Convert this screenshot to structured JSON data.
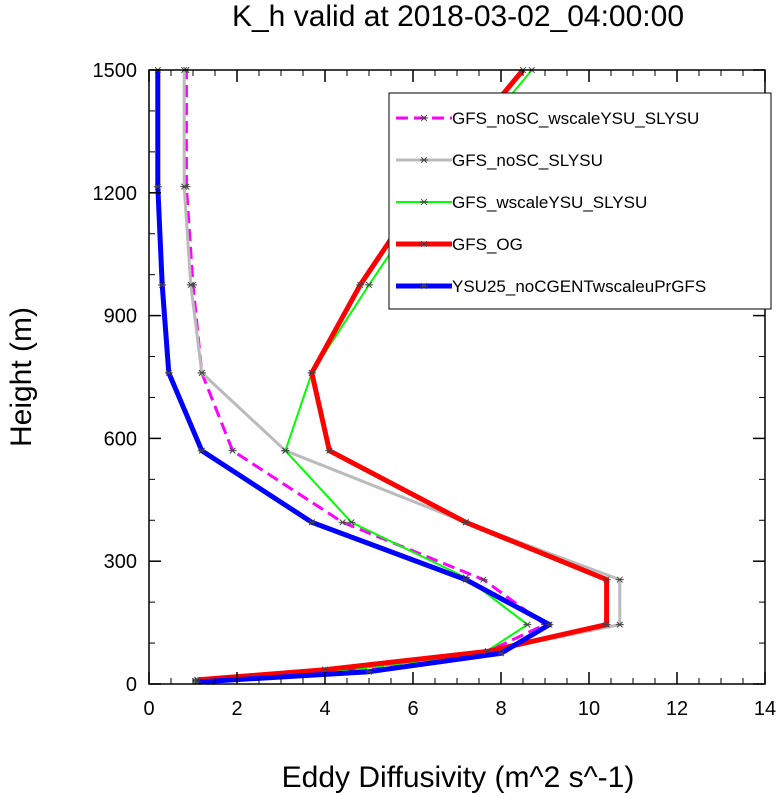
{
  "chart_data": {
    "type": "line",
    "title": "K_h valid at 2018-03-02_04:00:00",
    "xlabel": "Eddy Diffusivity (m^2 s^-1)",
    "ylabel": "Height (m)",
    "xlim": [
      0,
      14
    ],
    "ylim": [
      0,
      1500
    ],
    "xticks": [
      "0",
      "2",
      "4",
      "6",
      "8",
      "10",
      "12",
      "14"
    ],
    "yticks": [
      "0",
      "300",
      "600",
      "900",
      "1200",
      "1500"
    ],
    "grid": false,
    "legend_position": "top-right",
    "series": [
      {
        "name": "GFS_noSC_wscaleYSU_SLYSU",
        "color": "#ff00ff",
        "style": "dashed",
        "width": 3,
        "marker": "asterisk",
        "points": [
          [
            1.4,
            5
          ],
          [
            4.7,
            30
          ],
          [
            7.7,
            80
          ],
          [
            9.0,
            145
          ],
          [
            7.6,
            255
          ],
          [
            4.4,
            395
          ],
          [
            1.9,
            570
          ],
          [
            1.2,
            760
          ],
          [
            1.0,
            975
          ],
          [
            0.85,
            1215
          ],
          [
            0.85,
            1500
          ]
        ]
      },
      {
        "name": "GFS_noSC_SLYSU",
        "color": "#bbbbbb",
        "style": "solid",
        "width": 3,
        "marker": "asterisk",
        "points": [
          [
            1.1,
            10
          ],
          [
            4.0,
            35
          ],
          [
            7.7,
            80
          ],
          [
            10.7,
            145
          ],
          [
            10.7,
            255
          ],
          [
            7.2,
            395
          ],
          [
            3.1,
            570
          ],
          [
            1.2,
            760
          ],
          [
            0.95,
            975
          ],
          [
            0.8,
            1215
          ],
          [
            0.8,
            1500
          ]
        ]
      },
      {
        "name": "GFS_wscaleYSU_SLYSU",
        "color": "#00ff00",
        "style": "solid",
        "width": 2,
        "marker": "asterisk",
        "points": [
          [
            1.1,
            8
          ],
          [
            4.6,
            35
          ],
          [
            7.6,
            75
          ],
          [
            8.6,
            145
          ],
          [
            7.2,
            260
          ],
          [
            4.6,
            395
          ],
          [
            3.1,
            570
          ],
          [
            3.7,
            760
          ],
          [
            5.0,
            975
          ],
          [
            6.5,
            1215
          ],
          [
            8.7,
            1500
          ]
        ]
      },
      {
        "name": "GFS_OG",
        "color": "#ff0000",
        "style": "solid",
        "width": 5,
        "marker": "asterisk",
        "points": [
          [
            1.1,
            10
          ],
          [
            4.0,
            35
          ],
          [
            7.7,
            80
          ],
          [
            10.4,
            145
          ],
          [
            10.4,
            255
          ],
          [
            7.2,
            395
          ],
          [
            4.1,
            570
          ],
          [
            3.7,
            760
          ],
          [
            4.8,
            975
          ],
          [
            6.3,
            1215
          ],
          [
            8.5,
            1500
          ]
        ]
      },
      {
        "name": "YSU25_noCGENTwscaleuPrGFS",
        "color": "#0000ff",
        "style": "solid",
        "width": 5,
        "marker": "asterisk",
        "points": [
          [
            1.1,
            5
          ],
          [
            5.0,
            30
          ],
          [
            8.0,
            75
          ],
          [
            9.1,
            145
          ],
          [
            7.2,
            255
          ],
          [
            3.7,
            395
          ],
          [
            1.2,
            570
          ],
          [
            0.45,
            760
          ],
          [
            0.3,
            975
          ],
          [
            0.2,
            1215
          ],
          [
            0.2,
            1500
          ]
        ]
      }
    ]
  }
}
